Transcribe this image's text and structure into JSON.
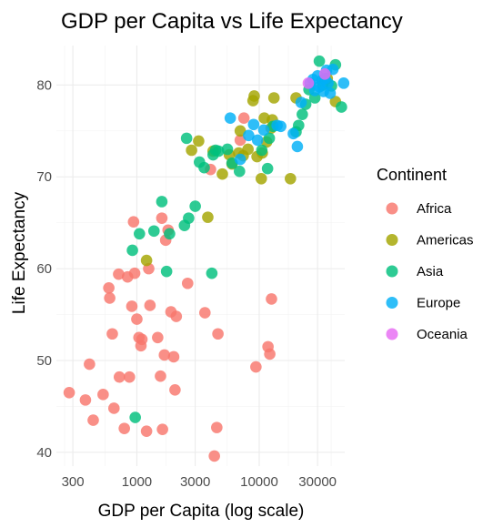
{
  "chart_data": {
    "type": "scatter",
    "title": "GDP per Capita vs Life Expectancy",
    "xlabel": "GDP per Capita (log scale)",
    "ylabel": "Life Expectancy",
    "x_scale": "log10",
    "xlim": [
      220,
      50000
    ],
    "ylim": [
      38.5,
      84.3
    ],
    "x_ticks": [
      300,
      1000,
      3000,
      10000,
      30000
    ],
    "x_tick_labels": [
      "300",
      "1000",
      "3000",
      "10000",
      "30000"
    ],
    "y_ticks": [
      40,
      50,
      60,
      70,
      80
    ],
    "y_tick_labels": [
      "40",
      "50",
      "60",
      "70",
      "80"
    ],
    "grid": true,
    "legend": {
      "title": "Continent",
      "position": "right"
    },
    "series": [
      {
        "name": "Africa",
        "color": "#F8766D",
        "points": [
          [
            280,
            46.5
          ],
          [
            380,
            45.7
          ],
          [
            410,
            49.6
          ],
          [
            440,
            43.5
          ],
          [
            530,
            46.3
          ],
          [
            590,
            57.9
          ],
          [
            600,
            56.8
          ],
          [
            630,
            52.9
          ],
          [
            650,
            44.8
          ],
          [
            710,
            59.4
          ],
          [
            720,
            48.2
          ],
          [
            790,
            42.6
          ],
          [
            840,
            59.1
          ],
          [
            870,
            48.2
          ],
          [
            910,
            55.9
          ],
          [
            940,
            65.1
          ],
          [
            960,
            59.5
          ],
          [
            1000,
            54.5
          ],
          [
            1040,
            52.5
          ],
          [
            1080,
            51.6
          ],
          [
            1100,
            52.3
          ],
          [
            1200,
            42.3
          ],
          [
            1250,
            60.0
          ],
          [
            1280,
            56.0
          ],
          [
            1480,
            52.5
          ],
          [
            1560,
            48.3
          ],
          [
            1600,
            65.5
          ],
          [
            1620,
            42.5
          ],
          [
            1680,
            50.6
          ],
          [
            1720,
            63.1
          ],
          [
            1800,
            64.2
          ],
          [
            1900,
            55.3
          ],
          [
            2000,
            50.4
          ],
          [
            2050,
            46.8
          ],
          [
            2100,
            54.8
          ],
          [
            2600,
            58.4
          ],
          [
            3600,
            55.2
          ],
          [
            4000,
            70.8
          ],
          [
            4300,
            39.6
          ],
          [
            4500,
            42.7
          ],
          [
            4600,
            52.9
          ],
          [
            7000,
            74.0
          ],
          [
            7500,
            76.4
          ],
          [
            9400,
            49.3
          ],
          [
            11800,
            51.5
          ],
          [
            12200,
            50.7
          ],
          [
            12600,
            56.7
          ]
        ]
      },
      {
        "name": "Americas",
        "color": "#A3A500",
        "points": [
          [
            1200,
            60.9
          ],
          [
            2800,
            72.9
          ],
          [
            3200,
            73.9
          ],
          [
            3800,
            65.6
          ],
          [
            4200,
            72.8
          ],
          [
            5000,
            70.3
          ],
          [
            5700,
            72.4
          ],
          [
            6000,
            71.4
          ],
          [
            6800,
            72.6
          ],
          [
            7000,
            75.0
          ],
          [
            7400,
            72.3
          ],
          [
            8100,
            73.0
          ],
          [
            8900,
            78.3
          ],
          [
            9100,
            78.8
          ],
          [
            9600,
            72.2
          ],
          [
            10400,
            69.8
          ],
          [
            10600,
            72.6
          ],
          [
            11000,
            76.4
          ],
          [
            11500,
            73.8
          ],
          [
            12500,
            75.3
          ],
          [
            12800,
            76.2
          ],
          [
            13200,
            78.6
          ],
          [
            18000,
            69.8
          ],
          [
            20000,
            78.6
          ],
          [
            36000,
            80.7
          ],
          [
            42000,
            78.2
          ]
        ]
      },
      {
        "name": "Asia",
        "color": "#00BF7D",
        "points": [
          [
            970,
            43.8
          ],
          [
            920,
            62.0
          ],
          [
            1050,
            63.8
          ],
          [
            1380,
            64.1
          ],
          [
            1600,
            67.3
          ],
          [
            1750,
            59.7
          ],
          [
            1850,
            63.8
          ],
          [
            2450,
            64.7
          ],
          [
            2550,
            74.2
          ],
          [
            2650,
            65.5
          ],
          [
            3000,
            66.8
          ],
          [
            3250,
            71.6
          ],
          [
            3550,
            71.0
          ],
          [
            4100,
            59.5
          ],
          [
            4200,
            72.4
          ],
          [
            4400,
            72.9
          ],
          [
            4650,
            72.8
          ],
          [
            5500,
            73.0
          ],
          [
            6000,
            71.5
          ],
          [
            6900,
            70.6
          ],
          [
            10500,
            72.9
          ],
          [
            11700,
            70.9
          ],
          [
            12100,
            74.2
          ],
          [
            13000,
            75.5
          ],
          [
            20000,
            74.9
          ],
          [
            21000,
            75.6
          ],
          [
            22500,
            76.8
          ],
          [
            24000,
            77.9
          ],
          [
            25500,
            79.5
          ],
          [
            28500,
            78.6
          ],
          [
            31000,
            82.6
          ],
          [
            33000,
            80.0
          ],
          [
            39000,
            79.9
          ],
          [
            42000,
            82.2
          ],
          [
            47000,
            77.6
          ]
        ]
      },
      {
        "name": "Europe",
        "color": "#00B0F6",
        "points": [
          [
            5800,
            76.4
          ],
          [
            7000,
            71.9
          ],
          [
            8200,
            74.5
          ],
          [
            9000,
            75.7
          ],
          [
            9700,
            74.0
          ],
          [
            10900,
            75.1
          ],
          [
            14000,
            75.6
          ],
          [
            15000,
            75.5
          ],
          [
            19000,
            74.7
          ],
          [
            20500,
            73.3
          ],
          [
            22000,
            78.1
          ],
          [
            26000,
            80.2
          ],
          [
            27500,
            80.6
          ],
          [
            28500,
            79.4
          ],
          [
            30000,
            81.0
          ],
          [
            31000,
            79.8
          ],
          [
            32500,
            80.5
          ],
          [
            33500,
            79.3
          ],
          [
            34500,
            80.7
          ],
          [
            35500,
            81.6
          ],
          [
            36500,
            80.2
          ],
          [
            38000,
            79.1
          ],
          [
            40000,
            81.7
          ],
          [
            49000,
            80.2
          ]
        ]
      },
      {
        "name": "Oceania",
        "color": "#E76BF3",
        "points": [
          [
            25200,
            80.2
          ],
          [
            34400,
            81.2
          ]
        ]
      }
    ]
  }
}
